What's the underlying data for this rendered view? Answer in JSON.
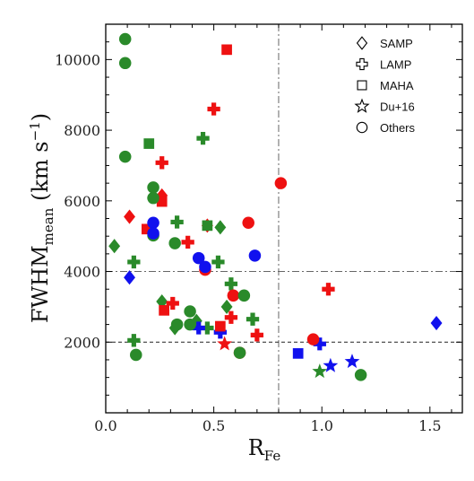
{
  "chart_data": {
    "type": "scatter",
    "x_label": "R",
    "x_label_sub": "Fe",
    "y_label": "FWHM",
    "y_label_sub": "mean",
    "y_label_unit": " (km s",
    "y_label_unit_sup": "−1",
    "y_label_unit_close": ")",
    "xlim": [
      0,
      1.65
    ],
    "ylim": [
      0,
      11000
    ],
    "x_ticks": [
      0.0,
      0.5,
      1.0,
      1.5
    ],
    "x_tick_labels": [
      "0.0",
      "0.5",
      "1.0",
      "1.5"
    ],
    "y_ticks": [
      2000,
      4000,
      6000,
      8000,
      10000
    ],
    "y_tick_labels": [
      "2000",
      "4000",
      "6000",
      "8000",
      "10000"
    ],
    "reference_lines": [
      {
        "orientation": "vertical",
        "value": 0.8,
        "style": "dashdot"
      },
      {
        "orientation": "horizontal",
        "value": 4000,
        "style": "dashdot"
      },
      {
        "orientation": "horizontal",
        "value": 2000,
        "style": "dashed"
      }
    ],
    "colors": {
      "red": "#ee1111",
      "green": "#2a8a2a",
      "blue": "#1111ee"
    },
    "legend": {
      "placement": "top-right",
      "entries": [
        {
          "label": "SAMP",
          "marker": "diamond"
        },
        {
          "label": "LAMP",
          "marker": "plus"
        },
        {
          "label": "MAHA",
          "marker": "square"
        },
        {
          "label": "Du+16",
          "marker": "star"
        },
        {
          "label": "Others",
          "marker": "circle"
        }
      ]
    },
    "series": [
      {
        "marker": "diamond",
        "color": "red",
        "points": [
          [
            0.11,
            5550
          ],
          [
            0.26,
            6150
          ],
          [
            0.47,
            5300
          ]
        ]
      },
      {
        "marker": "diamond",
        "color": "green",
        "points": [
          [
            0.04,
            4720
          ],
          [
            0.26,
            3150
          ],
          [
            0.32,
            2400
          ],
          [
            0.42,
            2600
          ],
          [
            0.53,
            5250
          ],
          [
            0.56,
            3000
          ]
        ]
      },
      {
        "marker": "diamond",
        "color": "blue",
        "points": [
          [
            0.11,
            3830
          ],
          [
            1.53,
            2540
          ]
        ]
      },
      {
        "marker": "plus",
        "color": "red",
        "points": [
          [
            0.26,
            7080
          ],
          [
            0.5,
            8600
          ],
          [
            0.38,
            4830
          ],
          [
            0.58,
            2700
          ],
          [
            0.7,
            2200
          ],
          [
            1.03,
            3500
          ],
          [
            0.31,
            3100
          ]
        ]
      },
      {
        "marker": "plus",
        "color": "green",
        "points": [
          [
            0.45,
            7770
          ],
          [
            0.13,
            4270
          ],
          [
            0.13,
            2050
          ],
          [
            0.33,
            5400
          ],
          [
            0.52,
            4270
          ],
          [
            0.58,
            3650
          ],
          [
            0.47,
            2400
          ],
          [
            0.68,
            2650
          ]
        ]
      },
      {
        "marker": "plus",
        "color": "blue",
        "points": [
          [
            0.43,
            2400
          ],
          [
            0.53,
            2280
          ],
          [
            0.99,
            1950
          ]
        ]
      },
      {
        "marker": "square",
        "color": "red",
        "points": [
          [
            0.56,
            10280
          ],
          [
            0.26,
            5980
          ],
          [
            0.19,
            5200
          ],
          [
            0.27,
            2900
          ],
          [
            0.53,
            2450
          ]
        ]
      },
      {
        "marker": "square",
        "color": "green",
        "points": [
          [
            0.2,
            7620
          ],
          [
            0.47,
            5300
          ]
        ]
      },
      {
        "marker": "square",
        "color": "blue",
        "points": [
          [
            0.89,
            1680
          ]
        ]
      },
      {
        "marker": "star",
        "color": "red",
        "points": [
          [
            0.55,
            1950
          ]
        ]
      },
      {
        "marker": "star",
        "color": "green",
        "points": [
          [
            0.99,
            1170
          ]
        ]
      },
      {
        "marker": "star",
        "color": "blue",
        "points": [
          [
            1.04,
            1330
          ],
          [
            1.14,
            1450
          ]
        ]
      },
      {
        "marker": "circle",
        "color": "red",
        "points": [
          [
            0.81,
            6500
          ],
          [
            0.66,
            5380
          ],
          [
            0.46,
            4050
          ],
          [
            0.59,
            3320
          ],
          [
            0.96,
            2080
          ],
          [
            0.62,
            1700
          ]
        ]
      },
      {
        "marker": "circle",
        "color": "green",
        "points": [
          [
            0.09,
            10580
          ],
          [
            0.09,
            9900
          ],
          [
            0.09,
            7250
          ],
          [
            0.22,
            6380
          ],
          [
            0.22,
            6080
          ],
          [
            0.22,
            5020
          ],
          [
            0.32,
            4800
          ],
          [
            0.39,
            2870
          ],
          [
            0.33,
            2500
          ],
          [
            0.39,
            2500
          ],
          [
            0.62,
            1700
          ],
          [
            0.14,
            1640
          ],
          [
            0.64,
            3320
          ],
          [
            1.18,
            1070
          ]
        ]
      },
      {
        "marker": "circle",
        "color": "blue",
        "points": [
          [
            0.22,
            5380
          ],
          [
            0.22,
            5080
          ],
          [
            0.43,
            4380
          ],
          [
            0.46,
            4130
          ],
          [
            0.69,
            4450
          ]
        ]
      }
    ]
  }
}
